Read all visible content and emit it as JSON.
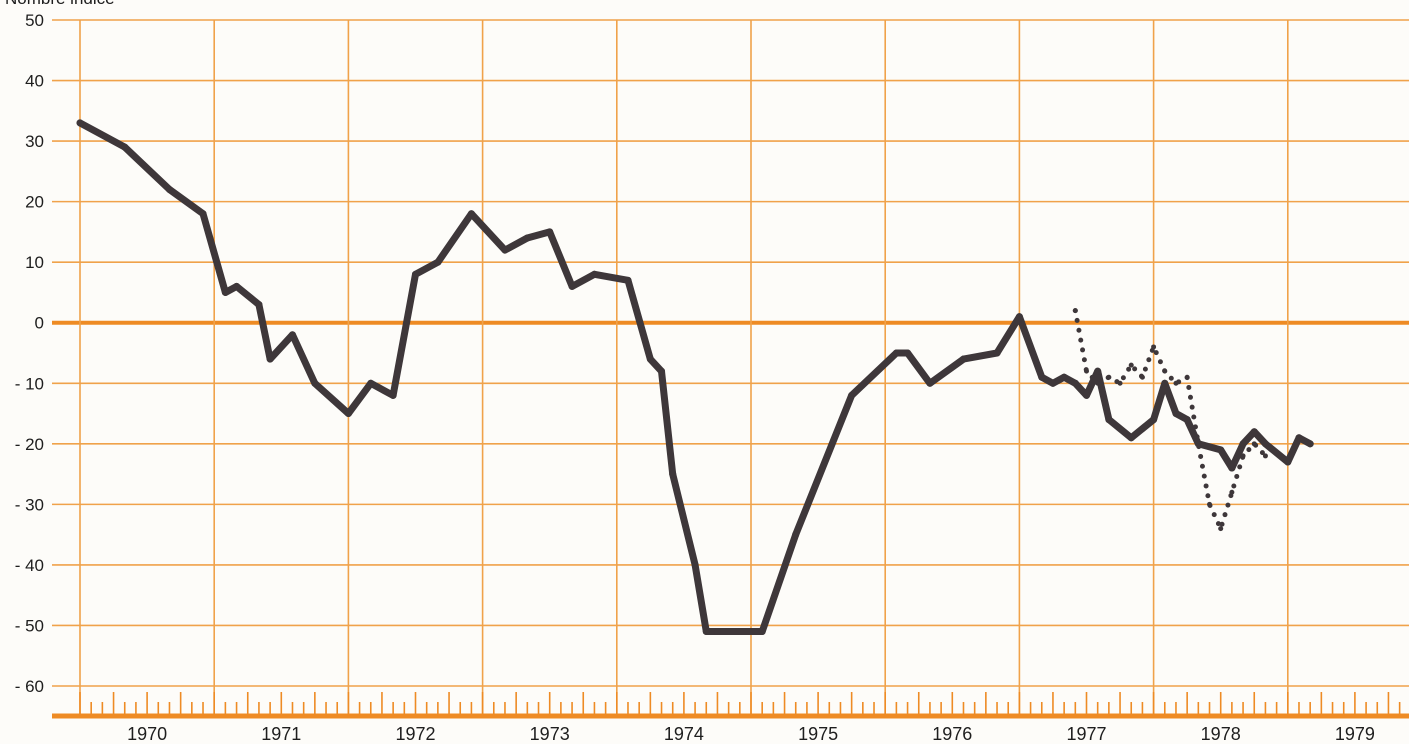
{
  "chart_data": {
    "type": "line",
    "title": "",
    "ylabel": "Nombre indice",
    "xlabel": "",
    "ylim": [
      -60,
      50
    ],
    "xlim": [
      "1970-01",
      "1979-12"
    ],
    "yticks": [
      50,
      40,
      30,
      20,
      10,
      0,
      -10,
      -20,
      -30,
      -40,
      -50,
      -60
    ],
    "ytick_labels": [
      "50",
      "40",
      "30",
      "20",
      "10",
      "0",
      "- 10",
      "- 20",
      "- 30",
      "- 40",
      "- 50",
      "- 60"
    ],
    "x_years": [
      "1970",
      "1971",
      "1972",
      "1973",
      "1974",
      "1975",
      "1976",
      "1977",
      "1978",
      "1979"
    ],
    "grid": true,
    "legend": "none",
    "colors": {
      "grid": "#f0a24a",
      "zero_line": "#ee8b24",
      "series": "#3e373a",
      "background": "#fdfcf9"
    },
    "series": [
      {
        "style": "solid",
        "x": [
          "1970-01",
          "1970-05",
          "1970-09",
          "1970-12",
          "1971-02",
          "1971-03",
          "1971-05",
          "1971-06",
          "1971-08",
          "1971-10",
          "1972-01",
          "1972-03",
          "1972-05",
          "1972-07",
          "1972-09",
          "1972-12",
          "1973-03",
          "1973-05",
          "1973-07",
          "1973-09",
          "1973-11",
          "1974-02",
          "1974-04",
          "1974-05",
          "1974-06",
          "1974-08",
          "1974-09",
          "1974-10",
          "1974-12",
          "1975-02",
          "1975-05",
          "1975-10",
          "1976-02",
          "1976-03",
          "1976-05",
          "1976-08",
          "1976-11",
          "1977-01",
          "1977-03",
          "1977-04",
          "1977-05",
          "1977-06",
          "1977-07",
          "1977-08",
          "1977-09",
          "1977-11",
          "1978-01",
          "1978-02",
          "1978-03",
          "1978-04",
          "1978-05",
          "1978-07",
          "1978-08",
          "1978-09",
          "1978-10",
          "1978-11",
          "1979-01",
          "1979-02",
          "1979-03"
        ],
        "y": [
          33,
          29,
          22,
          18,
          5,
          6,
          3,
          -6,
          -2,
          -10,
          -15,
          -10,
          -12,
          8,
          10,
          18,
          12,
          14,
          15,
          6,
          8,
          7,
          -6,
          -8,
          -25,
          -40,
          -51,
          -51,
          -51,
          -51,
          -35,
          -12,
          -5,
          -5,
          -10,
          -6,
          -5,
          1,
          -9,
          -10,
          -9,
          -10,
          -12,
          -8,
          -16,
          -19,
          -16,
          -10,
          -15,
          -16,
          -20,
          -21,
          -24,
          -20,
          -18,
          -20,
          -23,
          -19,
          -20
        ]
      },
      {
        "style": "dotted",
        "x": [
          "1977-06",
          "1977-07",
          "1977-08",
          "1977-09",
          "1977-10",
          "1977-11",
          "1977-12",
          "1978-01",
          "1978-02",
          "1978-03",
          "1978-04",
          "1978-05",
          "1978-06",
          "1978-07",
          "1978-08",
          "1978-09",
          "1978-10",
          "1978-11"
        ],
        "y": [
          2,
          -8,
          -10,
          -9,
          -10,
          -7,
          -9,
          -4,
          -8,
          -10,
          -9,
          -20,
          -30,
          -34,
          -28,
          -22,
          -20,
          -22
        ]
      }
    ]
  }
}
